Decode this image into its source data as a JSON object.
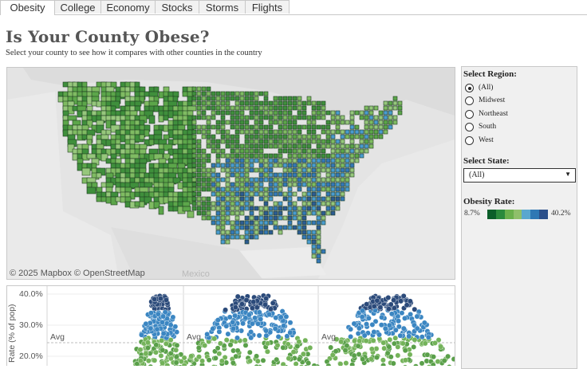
{
  "tabs": [
    {
      "label": "Obesity",
      "active": true,
      "x": 0,
      "w": 69
    },
    {
      "label": "College",
      "active": false,
      "x": 69,
      "w": 58
    },
    {
      "label": "Economy",
      "active": false,
      "x": 127,
      "w": 68
    },
    {
      "label": "Stocks",
      "active": false,
      "x": 195,
      "w": 55
    },
    {
      "label": "Storms",
      "active": false,
      "x": 250,
      "w": 58
    },
    {
      "label": "Flights",
      "active": false,
      "x": 308,
      "w": 55
    }
  ],
  "header": {
    "title": "Is Your County Obese?",
    "subtitle": "Select your county to see how it compares with other counties in the country"
  },
  "map": {
    "attribution": "© 2025 Mapbox  © OpenStreetMap",
    "country_label": "Mexico"
  },
  "panel": {
    "region_title": "Select Region:",
    "regions": [
      "(All)",
      "Midwest",
      "Northeast",
      "South",
      "West"
    ],
    "selected_region": "(All)",
    "state_title": "Select State:",
    "state_value": "(All)",
    "legend_title": "Obesity Rate:",
    "legend_min": "8.7%",
    "legend_max": "40.2%",
    "legend_colors": [
      "#0b5e2a",
      "#2a8a3c",
      "#6ab04c",
      "#8fbf6a",
      "#5aa7cf",
      "#2f78b4",
      "#2a4f8a"
    ]
  },
  "scatter": {
    "y_axis_title": "Rate (% of pop)",
    "y_ticks": [
      "40.0%",
      "30.0%",
      "20.0%"
    ],
    "avg_label": "Avg"
  },
  "colors": {
    "green_dark": "#3d8a3a",
    "green": "#74b35a",
    "blue": "#3b86c2",
    "navy": "#2b4a7a"
  }
}
